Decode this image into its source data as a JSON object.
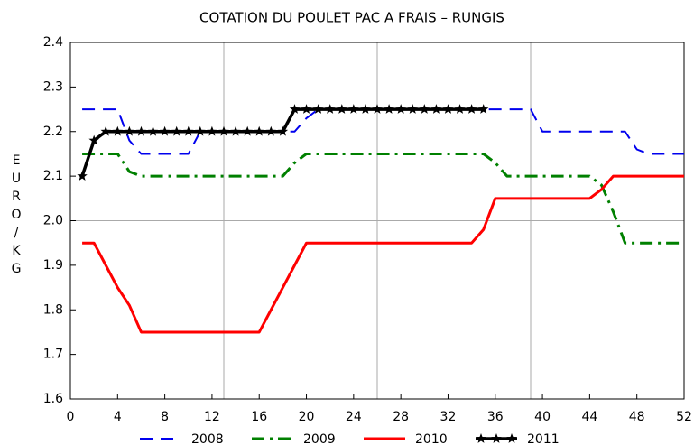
{
  "chart_data": {
    "type": "line",
    "title": "COTATION DU POULET PAC A FRAIS – RUNGIS",
    "y_label": "EURO / KG",
    "x": [
      1,
      2,
      3,
      4,
      5,
      6,
      7,
      8,
      9,
      10,
      11,
      12,
      13,
      14,
      15,
      16,
      17,
      18,
      19,
      20,
      21,
      22,
      23,
      24,
      25,
      26,
      27,
      28,
      29,
      30,
      31,
      32,
      33,
      34,
      35,
      36,
      37,
      38,
      39,
      40,
      41,
      42,
      43,
      44,
      45,
      46,
      47,
      48,
      49,
      50,
      51,
      52
    ],
    "series": [
      {
        "name": "2008",
        "color": "#0000ee",
        "dash": "14,9",
        "width": 2,
        "marker": null,
        "values": [
          2.25,
          2.25,
          2.25,
          2.25,
          2.18,
          2.15,
          2.15,
          2.15,
          2.15,
          2.15,
          2.2,
          2.2,
          2.2,
          2.2,
          2.2,
          2.2,
          2.2,
          2.2,
          2.2,
          2.23,
          2.25,
          2.25,
          2.25,
          2.25,
          2.25,
          2.25,
          2.25,
          2.25,
          2.25,
          2.25,
          2.25,
          2.25,
          2.25,
          2.25,
          2.25,
          2.25,
          2.25,
          2.25,
          2.25,
          2.2,
          2.2,
          2.2,
          2.2,
          2.2,
          2.2,
          2.2,
          2.2,
          2.16,
          2.15,
          2.15,
          2.15,
          2.15
        ]
      },
      {
        "name": "2009",
        "color": "#008000",
        "dash": "14,6,3,6",
        "width": 3,
        "marker": null,
        "values": [
          2.15,
          2.15,
          2.15,
          2.15,
          2.11,
          2.1,
          2.1,
          2.1,
          2.1,
          2.1,
          2.1,
          2.1,
          2.1,
          2.1,
          2.1,
          2.1,
          2.1,
          2.1,
          2.13,
          2.15,
          2.15,
          2.15,
          2.15,
          2.15,
          2.15,
          2.15,
          2.15,
          2.15,
          2.15,
          2.15,
          2.15,
          2.15,
          2.15,
          2.15,
          2.15,
          2.13,
          2.1,
          2.1,
          2.1,
          2.1,
          2.1,
          2.1,
          2.1,
          2.1,
          2.08,
          2.02,
          1.95,
          1.95,
          1.95,
          1.95,
          1.95,
          1.95
        ]
      },
      {
        "name": "2010",
        "color": "#ff0000",
        "dash": null,
        "width": 3,
        "marker": null,
        "values": [
          1.95,
          1.95,
          1.9,
          1.85,
          1.81,
          1.75,
          1.75,
          1.75,
          1.75,
          1.75,
          1.75,
          1.75,
          1.75,
          1.75,
          1.75,
          1.75,
          1.8,
          1.85,
          1.9,
          1.95,
          1.95,
          1.95,
          1.95,
          1.95,
          1.95,
          1.95,
          1.95,
          1.95,
          1.95,
          1.95,
          1.95,
          1.95,
          1.95,
          1.95,
          1.98,
          2.05,
          2.05,
          2.05,
          2.05,
          2.05,
          2.05,
          2.05,
          2.05,
          2.05,
          2.07,
          2.1,
          2.1,
          2.1,
          2.1,
          2.1,
          2.1,
          2.1
        ]
      },
      {
        "name": "2011",
        "color": "#000000",
        "dash": null,
        "width": 3.5,
        "marker": "star",
        "values": [
          2.1,
          2.18,
          2.2,
          2.2,
          2.2,
          2.2,
          2.2,
          2.2,
          2.2,
          2.2,
          2.2,
          2.2,
          2.2,
          2.2,
          2.2,
          2.2,
          2.2,
          2.2,
          2.25,
          2.25,
          2.25,
          2.25,
          2.25,
          2.25,
          2.25,
          2.25,
          2.25,
          2.25,
          2.25,
          2.25,
          2.25,
          2.25,
          2.25,
          2.25,
          2.25,
          null,
          null,
          null,
          null,
          null,
          null,
          null,
          null,
          null,
          null,
          null,
          null,
          null,
          null,
          null,
          null,
          null
        ]
      }
    ],
    "xlim": [
      0,
      52
    ],
    "xticks": [
      0,
      4,
      8,
      12,
      16,
      20,
      24,
      28,
      32,
      36,
      40,
      44,
      48,
      52
    ],
    "ylim": [
      1.6,
      2.4
    ],
    "yticks": [
      1.6,
      1.7,
      1.8,
      1.9,
      {
        "value": 2,
        "label": "2.0"
      },
      2.1,
      2.2,
      2.3,
      2.4
    ],
    "xgrid": [
      13,
      26,
      39
    ],
    "ygrid": [
      2
    ],
    "legend": "bottom"
  }
}
